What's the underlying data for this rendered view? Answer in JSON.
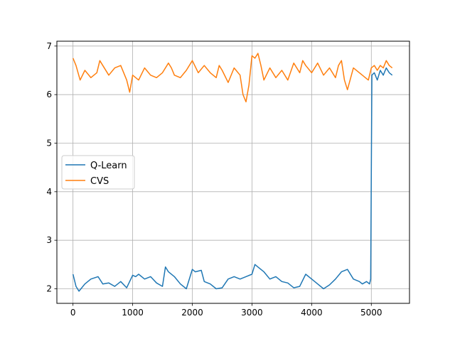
{
  "chart_data": {
    "type": "line",
    "title": "",
    "xlabel": "",
    "ylabel": "",
    "xlim": [
      -270,
      5640
    ],
    "ylim": [
      1.7,
      7.1
    ],
    "x_ticks": [
      0,
      1000,
      2000,
      3000,
      4000,
      5000
    ],
    "x_tick_labels": [
      "0",
      "1000",
      "2000",
      "3000",
      "4000",
      "5000"
    ],
    "y_ticks": [
      2,
      3,
      4,
      5,
      6,
      7
    ],
    "y_tick_labels": [
      "2",
      "3",
      "4",
      "5",
      "6",
      "7"
    ],
    "grid": true,
    "legend_position": "center-left",
    "series": [
      {
        "name": " Q-Learn",
        "color": "#1f77b4",
        "x": [
          0,
          50,
          100,
          200,
          300,
          420,
          500,
          600,
          700,
          800,
          900,
          1000,
          1050,
          1100,
          1200,
          1300,
          1400,
          1500,
          1550,
          1600,
          1700,
          1800,
          1900,
          2000,
          2050,
          2150,
          2200,
          2300,
          2400,
          2500,
          2600,
          2700,
          2800,
          2900,
          3000,
          3050,
          3100,
          3200,
          3300,
          3400,
          3500,
          3600,
          3700,
          3800,
          3900,
          4000,
          4100,
          4200,
          4300,
          4400,
          4500,
          4600,
          4700,
          4800,
          4850,
          4920,
          4970,
          4990,
          5010,
          5050,
          5100,
          5150,
          5200,
          5250,
          5300,
          5350
        ],
        "y": [
          2.3,
          2.05,
          1.95,
          2.1,
          2.2,
          2.25,
          2.1,
          2.12,
          2.05,
          2.15,
          2.02,
          2.28,
          2.25,
          2.3,
          2.2,
          2.25,
          2.12,
          2.05,
          2.45,
          2.35,
          2.25,
          2.1,
          2.0,
          2.4,
          2.35,
          2.38,
          2.15,
          2.1,
          2.0,
          2.02,
          2.2,
          2.25,
          2.2,
          2.25,
          2.3,
          2.5,
          2.45,
          2.35,
          2.2,
          2.25,
          2.15,
          2.12,
          2.02,
          2.05,
          2.3,
          2.2,
          2.1,
          2.0,
          2.08,
          2.2,
          2.35,
          2.4,
          2.2,
          2.15,
          2.1,
          2.15,
          2.1,
          2.2,
          6.4,
          6.45,
          6.3,
          6.5,
          6.4,
          6.55,
          6.45,
          6.4
        ]
      },
      {
        "name": "CVS",
        "color": "#ff7f0e",
        "x": [
          0,
          50,
          120,
          200,
          300,
          400,
          450,
          500,
          600,
          700,
          800,
          900,
          950,
          1000,
          1100,
          1200,
          1300,
          1400,
          1500,
          1600,
          1650,
          1700,
          1800,
          1900,
          2000,
          2100,
          2200,
          2300,
          2400,
          2450,
          2500,
          2600,
          2700,
          2800,
          2850,
          2900,
          2950,
          3000,
          3050,
          3100,
          3150,
          3200,
          3300,
          3400,
          3500,
          3600,
          3700,
          3800,
          3850,
          3900,
          4000,
          4100,
          4200,
          4300,
          4400,
          4450,
          4500,
          4550,
          4600,
          4700,
          4800,
          4900,
          4950,
          5000,
          5050,
          5100,
          5150,
          5200,
          5250,
          5300,
          5350
        ],
        "y": [
          6.75,
          6.6,
          6.3,
          6.5,
          6.35,
          6.45,
          6.7,
          6.6,
          6.4,
          6.55,
          6.6,
          6.3,
          6.05,
          6.4,
          6.3,
          6.55,
          6.4,
          6.35,
          6.45,
          6.65,
          6.55,
          6.4,
          6.35,
          6.5,
          6.7,
          6.45,
          6.6,
          6.45,
          6.35,
          6.6,
          6.5,
          6.25,
          6.55,
          6.4,
          6.0,
          5.85,
          6.2,
          6.8,
          6.75,
          6.85,
          6.6,
          6.3,
          6.55,
          6.35,
          6.5,
          6.3,
          6.65,
          6.45,
          6.7,
          6.6,
          6.45,
          6.65,
          6.4,
          6.55,
          6.35,
          6.6,
          6.7,
          6.3,
          6.1,
          6.55,
          6.45,
          6.35,
          6.3,
          6.55,
          6.6,
          6.5,
          6.6,
          6.55,
          6.7,
          6.6,
          6.55
        ]
      }
    ]
  }
}
